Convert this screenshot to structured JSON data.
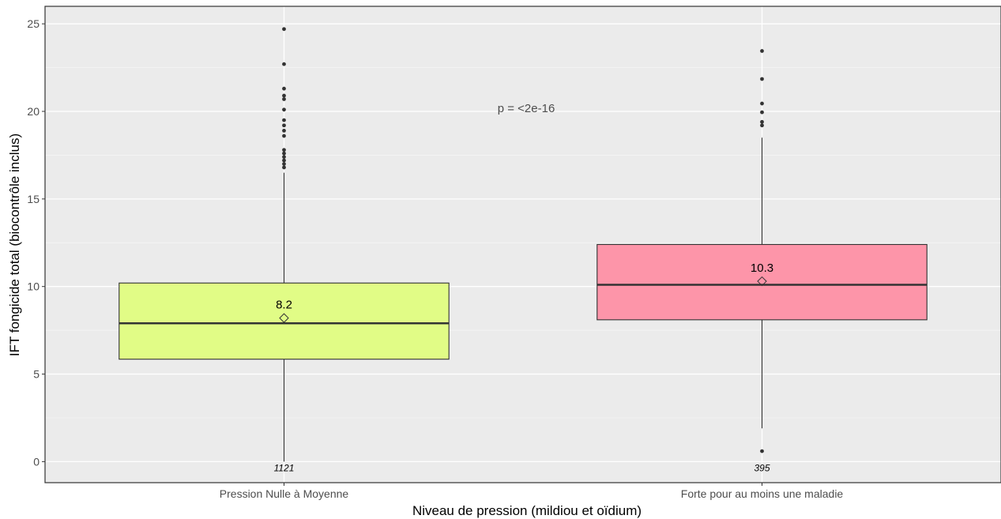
{
  "chart_data": {
    "type": "box",
    "xlabel": "Niveau de pression (mildiou et oïdium)",
    "ylabel": "IFT fongicide total (biocontrôle inclus)",
    "ylim": [
      -1.2,
      26
    ],
    "yticks": [
      0,
      5,
      10,
      15,
      20,
      25
    ],
    "grid": true,
    "legend": "none",
    "annotation": "p =  <2e-16",
    "categories": [
      "Pression Nulle à Moyenne",
      "Forte pour au moins une maladie"
    ],
    "colors": [
      "#e1fc86",
      "#fd95a9"
    ],
    "boxes": [
      {
        "category": "Pression Nulle à Moyenne",
        "whisker_low": 0,
        "q1": 5.85,
        "median": 7.9,
        "q3": 10.2,
        "whisker_high": 16.5,
        "mean": 8.2,
        "mean_label": "8.2",
        "n_label": "1121",
        "outliers": [
          16.8,
          17.0,
          17.2,
          17.4,
          17.6,
          17.8,
          18.6,
          18.9,
          19.2,
          19.5,
          20.1,
          20.7,
          20.9,
          21.3,
          22.7,
          24.7
        ]
      },
      {
        "category": "Forte pour au moins une maladie",
        "whisker_low": 1.9,
        "q1": 8.1,
        "median": 10.1,
        "q3": 12.4,
        "whisker_high": 18.5,
        "mean": 10.3,
        "mean_label": "10.3",
        "n_label": "395",
        "outliers": [
          0.6,
          19.2,
          19.4,
          19.95,
          20.45,
          21.85,
          23.45
        ]
      }
    ]
  }
}
